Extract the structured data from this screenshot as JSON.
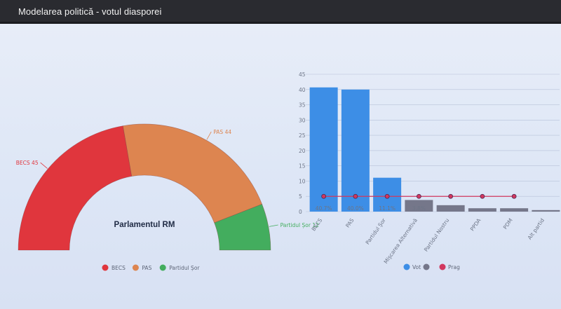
{
  "header": {
    "title": "Modelarea politică - votul diasporei"
  },
  "chart_data": [
    {
      "type": "pie",
      "variant": "semicircle",
      "center_label": "Parlamentul RM",
      "slices": [
        {
          "name": "BECS",
          "value": 45,
          "label": "BECS 45",
          "color": "#e0363d"
        },
        {
          "name": "PAS",
          "value": 44,
          "label": "PAS 44",
          "color": "#dd8550"
        },
        {
          "name": "Partidul Șor",
          "value": 12,
          "label": "Partidul Șor 12",
          "color": "#43ad5e"
        }
      ],
      "legend": [
        "BECS",
        "PAS",
        "Partidul Șor"
      ],
      "legend_position": "bottom"
    },
    {
      "type": "bar",
      "categories": [
        "BECS",
        "PAS",
        "Partidul Șor",
        "Mișcarea Alternativă",
        "Partidul Nostru",
        "PPDA",
        "PDM",
        "Alt partid"
      ],
      "values": [
        40.7,
        40.0,
        11.1,
        3.8,
        2.1,
        1.1,
        1.1,
        0.5
      ],
      "data_labels": [
        "40.7%",
        "40.0%",
        "11.1%",
        "3.8%",
        "",
        "",
        "",
        ""
      ],
      "bar_colors": [
        "#3d8ee6",
        "#3d8ee6",
        "#3d8ee6",
        "#75778a",
        "#75778a",
        "#75778a",
        "#75778a",
        "#75778a"
      ],
      "threshold": {
        "name": "Prag",
        "value": 5,
        "categories": [
          "BECS",
          "PAS",
          "Partidul Șor",
          "Mișcarea Alternativă",
          "Partidul Nostru",
          "PPDA",
          "PDM"
        ],
        "color": "#d1375e"
      },
      "yticks": [
        0,
        5,
        10,
        15,
        20,
        25,
        30,
        35,
        40,
        45
      ],
      "ylim": [
        0,
        45
      ],
      "grid": true,
      "legend": [
        {
          "name": "Vot",
          "color": "#3d8ee6"
        },
        {
          "name": "",
          "color": "#75778a"
        },
        {
          "name": "Prag",
          "color": "#d1375e"
        }
      ],
      "legend_position": "bottom"
    }
  ]
}
